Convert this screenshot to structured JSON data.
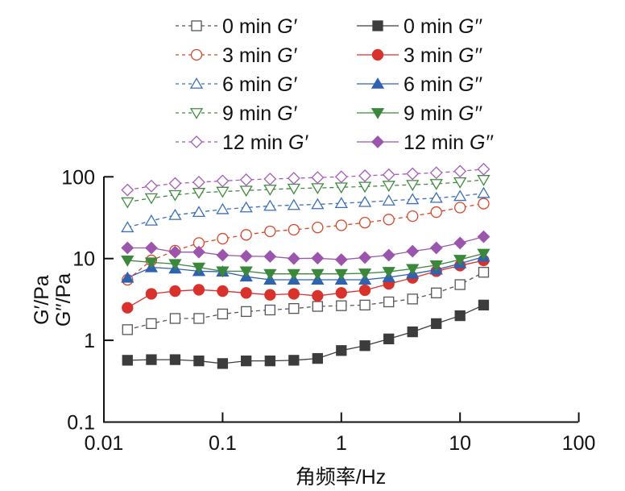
{
  "chart_data": {
    "type": "line",
    "title": "",
    "xlabel": "角频率/Hz",
    "ylabel_lines": [
      "G′/Pa",
      "G′′/Pa"
    ],
    "xscale": "log",
    "yscale": "log",
    "xlim": [
      0.01,
      100
    ],
    "ylim": [
      0.1,
      100
    ],
    "xticks": [
      "0.01",
      "0.1",
      "1",
      "10",
      "100"
    ],
    "yticks": [
      "0.1",
      "1",
      "10",
      "100"
    ],
    "xtick_values": [
      0.01,
      0.1,
      1,
      10,
      100
    ],
    "ytick_values": [
      0.1,
      1,
      10,
      100
    ],
    "grid": false,
    "legend_position": "top",
    "x": [
      0.0158,
      0.0251,
      0.0398,
      0.0631,
      0.1,
      0.158,
      0.251,
      0.398,
      0.631,
      1,
      1.58,
      2.51,
      3.98,
      6.31,
      10,
      15.8
    ],
    "series": [
      {
        "name": "0 min G′",
        "color": "#555555",
        "dashed": true,
        "marker": "square",
        "filled": false,
        "values": [
          1.35,
          1.6,
          1.85,
          1.85,
          2.1,
          2.25,
          2.35,
          2.45,
          2.6,
          2.65,
          2.7,
          2.95,
          3.2,
          3.8,
          4.8,
          6.8
        ]
      },
      {
        "name": "3 min G′",
        "color": "#d9452b",
        "dashed": true,
        "marker": "circle",
        "filled": false,
        "values": [
          5.5,
          9.5,
          12.5,
          15.5,
          17.5,
          19.5,
          21.5,
          22.5,
          24,
          25.5,
          27.5,
          30,
          33,
          37,
          42,
          47
        ]
      },
      {
        "name": "6 min G′",
        "color": "#3a6fb6",
        "dashed": true,
        "marker": "triangle-up",
        "filled": false,
        "values": [
          24,
          29,
          34,
          37,
          40,
          42,
          44,
          45,
          46,
          47.5,
          49,
          51,
          53,
          55,
          58,
          63
        ]
      },
      {
        "name": "9 min G′",
        "color": "#3f8a3f",
        "dashed": true,
        "marker": "triangle-down",
        "filled": false,
        "values": [
          49,
          55,
          60,
          64,
          66,
          68,
          70,
          72,
          73,
          74.5,
          76,
          78,
          80,
          82,
          86,
          92
        ]
      },
      {
        "name": "12 min G′",
        "color": "#a45cb8",
        "dashed": true,
        "marker": "diamond",
        "filled": false,
        "values": [
          69,
          77,
          83,
          86,
          89,
          92,
          94,
          96,
          98,
          100,
          103,
          106,
          109,
          112,
          117,
          124
        ]
      },
      {
        "name": "0 min G′′",
        "color": "#3c3c3c",
        "dashed": false,
        "marker": "square",
        "filled": true,
        "values": [
          0.57,
          0.58,
          0.58,
          0.56,
          0.52,
          0.56,
          0.56,
          0.57,
          0.6,
          0.75,
          0.86,
          1.04,
          1.27,
          1.6,
          2.0,
          2.7
        ]
      },
      {
        "name": "3 min G′′",
        "color": "#d9312b",
        "dashed": false,
        "marker": "circle",
        "filled": true,
        "values": [
          2.5,
          3.7,
          4.0,
          4.15,
          4.0,
          3.8,
          3.6,
          3.7,
          3.5,
          3.8,
          4.1,
          4.9,
          5.8,
          7.0,
          8.2,
          9.5
        ]
      },
      {
        "name": "6 min G′′",
        "color": "#2f62b0",
        "dashed": false,
        "marker": "triangle-up",
        "filled": true,
        "values": [
          5.8,
          7.8,
          7.5,
          7.0,
          6.9,
          6.0,
          5.5,
          5.5,
          5.5,
          5.5,
          5.5,
          5.9,
          6.5,
          7.3,
          8.7,
          10.5
        ]
      },
      {
        "name": "9 min G′′",
        "color": "#3b873b",
        "dashed": false,
        "marker": "triangle-down",
        "filled": true,
        "values": [
          9.5,
          9.0,
          8.6,
          7.8,
          7.0,
          7.0,
          6.5,
          6.5,
          6.5,
          6.5,
          6.6,
          6.9,
          7.5,
          8.3,
          9.7,
          11.5
        ]
      },
      {
        "name": "12 min G′′",
        "color": "#9b55ad",
        "dashed": false,
        "marker": "diamond",
        "filled": true,
        "values": [
          13.5,
          13.5,
          12,
          12,
          11,
          10.7,
          10.6,
          10,
          10.1,
          9.7,
          10.3,
          11,
          12.3,
          13.5,
          15.5,
          18.5
        ]
      }
    ]
  }
}
